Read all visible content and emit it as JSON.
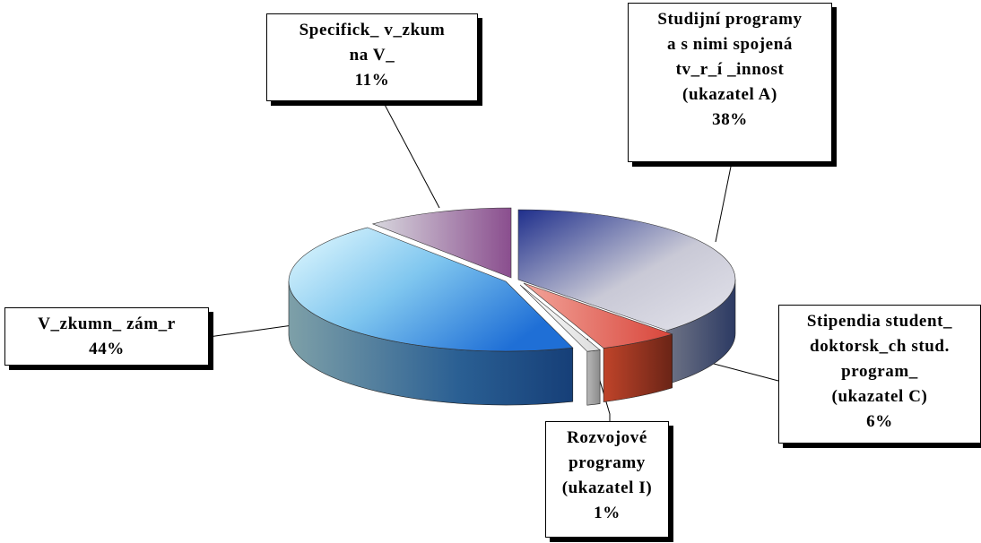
{
  "chart_data": {
    "type": "pie",
    "style": "3d-exploded",
    "title": "",
    "legend": "none",
    "slices": [
      {
        "key": "studijni",
        "label": "Studijní programy a s nimi spojená tv_r_í _innost (ukazatel A)",
        "lines": [
          "Studijní programy",
          "a s nimi spojená",
          "tv_r_í _innost",
          "(ukazatel A)"
        ],
        "pct_label": "38%",
        "value": 38,
        "color_top": "#c7c9d8",
        "color_side": "#4d5a76"
      },
      {
        "key": "stipendia",
        "label": "Stipendia student_ doktorsk_ch stud. program_ (ukazatel C)",
        "lines": [
          "Stipendia student_",
          "doktorsk_ch stud.",
          "program_",
          "(ukazatel C)"
        ],
        "pct_label": "6%",
        "value": 6,
        "color_top": "#e67a72",
        "color_side": "#8a3320"
      },
      {
        "key": "rozvojove",
        "label": "Rozvojové programy (ukazatel I)",
        "lines": [
          "Rozvojové",
          "programy",
          "(ukazatel I)"
        ],
        "pct_label": "1%",
        "value": 1,
        "color_top": "#f4f4f4",
        "color_side": "#9a9a9a"
      },
      {
        "key": "vyzkumny",
        "label": "V_zkumn_ zám_r",
        "lines": [
          "V_zkumn_ zám_r"
        ],
        "pct_label": "44%",
        "value": 44,
        "color_top": "#7fb4ea",
        "color_side": "#5a7f93"
      },
      {
        "key": "specificky",
        "label": "Specifick_ v_zkum na V_",
        "lines": [
          "Specifick_ v_zkum",
          "na V_"
        ],
        "pct_label": "11%",
        "value": 11,
        "color_top": "#c6c0cf",
        "color_side": "#7b6482"
      }
    ]
  }
}
